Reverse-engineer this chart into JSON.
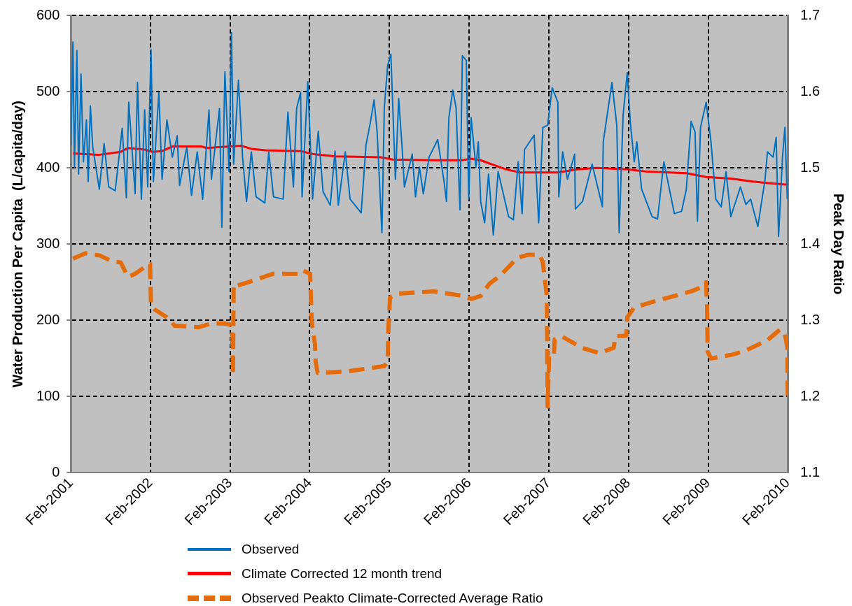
{
  "chart_data": {
    "type": "line",
    "ylabel": "Water Production Per Capita  (L/capita/day)",
    "y2label": "Peak Day Ratio",
    "marker": "none",
    "grid": true,
    "legend": "bottom",
    "xlim": [
      "2001-02-01",
      "2010-02-01"
    ],
    "xticks": [
      {
        "value": "2001-02-01",
        "label": "Feb-2001"
      },
      {
        "value": "2002-02-01",
        "label": "Feb-2002"
      },
      {
        "value": "2003-02-01",
        "label": "Feb-2003"
      },
      {
        "value": "2004-02-01",
        "label": "Feb-2004"
      },
      {
        "value": "2005-02-01",
        "label": "Feb-2005"
      },
      {
        "value": "2006-02-01",
        "label": "Feb-2006"
      },
      {
        "value": "2007-02-01",
        "label": "Feb-2007"
      },
      {
        "value": "2008-02-01",
        "label": "Feb-2008"
      },
      {
        "value": "2009-02-01",
        "label": "Feb-2009"
      },
      {
        "value": "2010-02-01",
        "label": "Feb-2010"
      }
    ],
    "ylim": [
      0,
      600
    ],
    "yticks": [
      0,
      100,
      200,
      300,
      400,
      500,
      600
    ],
    "y2lim": [
      1.1,
      1.7
    ],
    "y2ticks": [
      1.1,
      1.2,
      1.3,
      1.4,
      1.5,
      1.6,
      1.7
    ],
    "series": [
      {
        "name": "Observed",
        "color": "#0070c0",
        "line_style": "solid",
        "x": [
          "2001-02-01",
          "2001-02-10",
          "2001-02-17",
          "2001-02-28",
          "2001-03-08",
          "2001-03-19",
          "2001-03-30",
          "2001-04-13",
          "2001-04-21",
          "2001-05-01",
          "2001-05-12",
          "2001-06-11",
          "2001-07-03",
          "2001-07-24",
          "2001-08-23",
          "2001-09-24",
          "2001-10-13",
          "2001-10-24",
          "2001-11-22",
          "2001-12-03",
          "2001-12-21",
          "2002-01-05",
          "2002-01-19",
          "2002-02-03",
          "2002-02-14",
          "2002-03-11",
          "2002-03-26",
          "2002-04-17",
          "2002-05-12",
          "2002-06-03",
          "2002-06-14",
          "2002-07-17",
          "2002-08-08",
          "2002-09-03",
          "2002-09-28",
          "2002-10-27",
          "2002-11-07",
          "2002-12-14",
          "2002-12-25",
          "2003-01-08",
          "2003-01-27",
          "2003-02-07",
          "2003-02-17",
          "2003-03-11",
          "2003-03-30",
          "2003-04-17",
          "2003-05-09",
          "2003-05-31",
          "2003-07-10",
          "2003-07-28",
          "2003-08-19",
          "2003-10-02",
          "2003-10-24",
          "2003-11-18",
          "2003-12-03",
          "2003-12-21",
          "2003-12-28",
          "2004-01-23",
          "2004-02-14",
          "2004-03-11",
          "2004-04-02",
          "2004-05-05",
          "2004-05-27",
          "2004-06-11",
          "2004-07-13",
          "2004-08-04",
          "2004-09-24",
          "2004-10-16",
          "2004-11-04",
          "2004-11-22",
          "2004-12-06",
          "2004-12-28",
          "2005-01-08",
          "2005-01-23",
          "2005-02-07",
          "2005-02-28",
          "2005-03-15",
          "2005-03-30",
          "2005-04-10",
          "2005-05-16",
          "2005-05-31",
          "2005-06-18",
          "2005-07-06",
          "2005-08-01",
          "2005-09-10",
          "2005-10-09",
          "2005-10-20",
          "2005-10-31",
          "2005-11-18",
          "2005-12-03",
          "2005-12-21",
          "2006-01-01",
          "2006-01-19",
          "2006-01-30",
          "2006-02-10",
          "2006-03-04",
          "2006-03-15",
          "2006-03-26",
          "2006-04-13",
          "2006-05-01",
          "2006-05-23",
          "2006-06-14",
          "2006-08-01",
          "2006-08-23",
          "2006-09-14",
          "2006-10-02",
          "2006-10-13",
          "2006-11-26",
          "2006-12-17",
          "2007-01-05",
          "2007-01-27",
          "2007-02-17",
          "2007-03-15",
          "2007-03-19",
          "2007-04-06",
          "2007-04-28",
          "2007-05-31",
          "2007-06-03",
          "2007-07-06",
          "2007-08-19",
          "2007-10-05",
          "2007-10-09",
          "2007-11-18",
          "2007-12-10",
          "2007-12-21",
          "2008-01-08",
          "2008-01-27",
          "2008-02-10",
          "2008-02-28",
          "2008-03-11",
          "2008-04-02",
          "2008-05-20",
          "2008-06-14",
          "2008-07-13",
          "2008-08-30",
          "2008-10-02",
          "2008-10-24",
          "2008-11-15",
          "2008-12-03",
          "2008-12-14",
          "2008-12-28",
          "2009-01-23",
          "2009-02-14",
          "2009-03-08",
          "2009-04-02",
          "2009-04-24",
          "2009-05-16",
          "2009-06-29",
          "2009-07-24",
          "2009-08-15",
          "2009-09-17",
          "2009-10-20",
          "2009-10-31",
          "2009-11-26",
          "2009-12-10",
          "2009-12-21",
          "2010-01-08",
          "2010-01-19",
          "2010-01-30"
        ],
        "values": [
          430,
          565,
          401,
          554,
          392,
          523,
          408,
          463,
          382,
          481,
          427,
          372,
          432,
          375,
          370,
          452,
          361,
          486,
          366,
          512,
          359,
          476,
          375,
          555,
          382,
          499,
          385,
          463,
          414,
          442,
          377,
          427,
          364,
          421,
          359,
          476,
          385,
          478,
          322,
          526,
          395,
          577,
          405,
          515,
          414,
          356,
          421,
          362,
          354,
          421,
          362,
          359,
          473,
          375,
          478,
          499,
          362,
          513,
          359,
          448,
          369,
          351,
          422,
          351,
          421,
          359,
          341,
          430,
          458,
          489,
          447,
          315,
          479,
          534,
          549,
          385,
          491,
          429,
          375,
          418,
          362,
          401,
          366,
          414,
          437,
          382,
          356,
          466,
          502,
          479,
          345,
          547,
          541,
          359,
          466,
          401,
          434,
          356,
          328,
          392,
          312,
          395,
          336,
          332,
          408,
          340,
          424,
          443,
          328,
          453,
          456,
          505,
          486,
          362,
          421,
          385,
          418,
          346,
          356,
          405,
          349,
          434,
          512,
          456,
          315,
          469,
          525,
          460,
          408,
          434,
          372,
          336,
          333,
          408,
          340,
          343,
          372,
          461,
          447,
          330,
          453,
          486,
          434,
          359,
          349,
          395,
          336,
          375,
          352,
          359,
          323,
          385,
          421,
          414,
          440,
          310,
          414,
          453,
          359
        ]
      },
      {
        "name": "Climate Corrected 12 month trend",
        "color": "#ff0000",
        "line_style": "solid",
        "x": [
          "2001-02-10",
          "2001-06-07",
          "2001-09-17",
          "2001-10-20",
          "2002-01-05",
          "2002-02-10",
          "2002-03-26",
          "2002-05-12",
          "2002-09-24",
          "2002-10-16",
          "2003-03-22",
          "2003-05-09",
          "2003-07-13",
          "2003-12-21",
          "2004-02-17",
          "2004-05-31",
          "2004-12-21",
          "2005-02-14",
          "2005-08-26",
          "2005-12-28",
          "2006-02-10",
          "2006-03-26",
          "2006-05-23",
          "2006-07-21",
          "2006-09-24",
          "2007-03-15",
          "2007-06-11",
          "2007-09-10",
          "2008-01-27",
          "2008-04-28",
          "2008-10-24",
          "2009-01-23",
          "2009-05-16",
          "2009-08-26",
          "2009-11-04",
          "2010-02-01"
        ],
        "values": [
          419,
          417,
          421,
          426,
          424,
          421,
          422,
          428,
          428,
          426,
          429,
          425,
          423,
          422,
          418,
          415,
          414,
          411,
          410,
          410,
          412,
          410,
          404,
          398,
          394,
          394,
          398,
          400,
          398,
          395,
          393,
          388,
          386,
          382,
          380,
          378
        ]
      },
      {
        "name": "Observed Peakto Climate-Corrected Average Ratio",
        "color": "#e46c0a",
        "line_style": "dashed",
        "axis": "y2",
        "x": [
          "2001-02-10",
          "2001-04-10",
          "2001-06-14",
          "2001-08-12",
          "2001-09-17",
          "2001-10-20",
          "2001-11-22",
          "2002-01-16",
          "2002-01-30",
          "2002-02-03",
          "2002-02-21",
          "2002-04-17",
          "2002-05-23",
          "2002-09-10",
          "2002-11-07",
          "2003-01-05",
          "2003-02-10",
          "2003-02-14",
          "2003-02-17",
          "2003-02-28",
          "2003-04-24",
          "2003-08-15",
          "2003-12-10",
          "2003-12-28",
          "2004-02-03",
          "2004-02-10",
          "2004-02-25",
          "2004-02-28",
          "2004-03-08",
          "2004-07-21",
          "2005-01-08",
          "2005-01-23",
          "2005-01-27",
          "2005-02-03",
          "2005-03-08",
          "2005-08-23",
          "2006-01-05",
          "2006-02-10",
          "2006-03-26",
          "2006-05-05",
          "2006-06-25",
          "2006-09-10",
          "2006-10-27",
          "2006-12-21",
          "2007-01-05",
          "2007-01-23",
          "2007-01-25",
          "2007-01-27",
          "2007-02-03",
          "2007-02-25",
          "2007-02-28",
          "2007-04-02",
          "2007-07-03",
          "2007-09-21",
          "2007-11-26",
          "2007-12-03",
          "2008-01-23",
          "2008-01-27",
          "2008-02-28",
          "2008-05-31",
          "2008-11-15",
          "2008-12-28",
          "2009-01-23",
          "2009-01-27",
          "2009-01-30",
          "2009-02-14",
          "2009-05-23",
          "2009-07-21",
          "2009-10-31",
          "2009-12-28",
          "2010-01-19",
          "2010-01-30",
          "2010-02-01"
        ],
        "values": [
          1.381,
          1.388,
          1.385,
          1.377,
          1.376,
          1.357,
          1.361,
          1.372,
          1.374,
          1.32,
          1.314,
          1.304,
          1.293,
          1.291,
          1.296,
          1.296,
          1.294,
          1.228,
          1.347,
          1.345,
          1.35,
          1.361,
          1.361,
          1.366,
          1.361,
          1.298,
          1.269,
          1.246,
          1.231,
          1.233,
          1.24,
          1.246,
          1.291,
          1.33,
          1.335,
          1.338,
          1.332,
          1.328,
          1.332,
          1.348,
          1.359,
          1.382,
          1.386,
          1.386,
          1.376,
          1.333,
          1.269,
          1.187,
          1.255,
          1.255,
          1.275,
          1.279,
          1.264,
          1.257,
          1.264,
          1.279,
          1.28,
          1.304,
          1.317,
          1.325,
          1.338,
          1.343,
          1.35,
          1.32,
          1.259,
          1.25,
          1.255,
          1.26,
          1.274,
          1.288,
          1.282,
          1.265,
          1.201
        ]
      }
    ]
  }
}
